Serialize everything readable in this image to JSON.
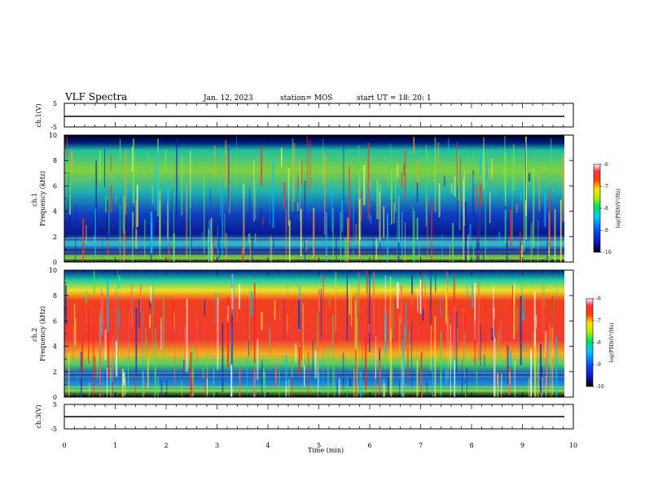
{
  "header": {
    "title": "VLF Spectra",
    "date": "Jan. 12, 2023",
    "station": "station= MOS",
    "start": "start  UT =   18: 20: 1"
  },
  "chart_data": [
    {
      "id": "ch1-voltage",
      "type": "line",
      "ylabel": "ch.1(V)",
      "ylim": [
        -5,
        5
      ],
      "yticks": [
        "5",
        "-5"
      ],
      "xlim": [
        0,
        10
      ],
      "series": [
        {
          "x": [
            0,
            9.85
          ],
          "y": [
            -0.5,
            -0.5
          ]
        }
      ]
    },
    {
      "id": "ch1-spectrogram",
      "type": "heatmap",
      "ylabel": "ch.1\nFrequency (kHz)",
      "ylim": [
        0,
        10
      ],
      "yticks": [
        "0",
        "2",
        "4",
        "6",
        "8",
        "10"
      ],
      "xlim": [
        0,
        10
      ],
      "colorbar": {
        "label": "log(PSD)(V²/Hz)",
        "range": [
          -10,
          -6
        ],
        "ticks": [
          "-6",
          "-7",
          "-8",
          "-9",
          "-10"
        ]
      }
    },
    {
      "id": "ch2-spectrogram",
      "type": "heatmap",
      "ylabel": "ch.2\nFrequency (kHz)",
      "ylim": [
        0,
        10
      ],
      "yticks": [
        "0",
        "2",
        "4",
        "6",
        "8",
        "10"
      ],
      "xlim": [
        0,
        10
      ],
      "colorbar": {
        "label": "log(PSD)(V²/Hz)",
        "range": [
          -10,
          -6
        ],
        "ticks": [
          "-6",
          "-7",
          "-8",
          "-9",
          "-10"
        ]
      }
    },
    {
      "id": "ch3-voltage",
      "type": "line",
      "ylabel": "ch.3(V)",
      "ylim": [
        -5,
        5
      ],
      "yticks": [
        "5",
        "-5"
      ],
      "xlim": [
        0,
        10
      ],
      "xlabel": "Time  (min)",
      "xticks": [
        "0",
        "1",
        "2",
        "3",
        "4",
        "5",
        "6",
        "7",
        "8",
        "9",
        "10"
      ],
      "series": [
        {
          "x": [
            0,
            9.85
          ],
          "y": [
            -1.5,
            -1.5
          ]
        }
      ]
    }
  ]
}
